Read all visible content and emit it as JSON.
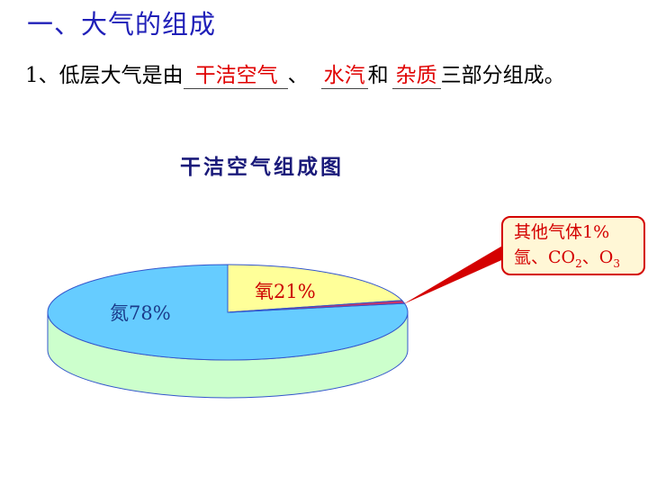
{
  "heading": "一、大气的组成",
  "sentence": {
    "prefix": "1、低层大气是由",
    "answer1": "干洁空气",
    "sep1": "、",
    "answer2": "水汽",
    "conj": "和",
    "answer3": "杂质",
    "suffix": "三部分组成。"
  },
  "chart_data": {
    "type": "pie",
    "title": "干洁空气组成图",
    "labels": [
      "氮78%",
      "氧21%"
    ],
    "slices": [
      {
        "name": "氮",
        "value": 78,
        "color": "#66ccff"
      },
      {
        "name": "氧",
        "value": 21,
        "color": "#ffff99"
      },
      {
        "name": "其他气体",
        "value": 1,
        "color": "#cc3366"
      }
    ],
    "callout": {
      "line1": "其他气体1%",
      "line2_prefix": "氩、CO",
      "line2_sub": "2",
      "line2_mid": "、O",
      "line2_sub2": "3"
    }
  }
}
